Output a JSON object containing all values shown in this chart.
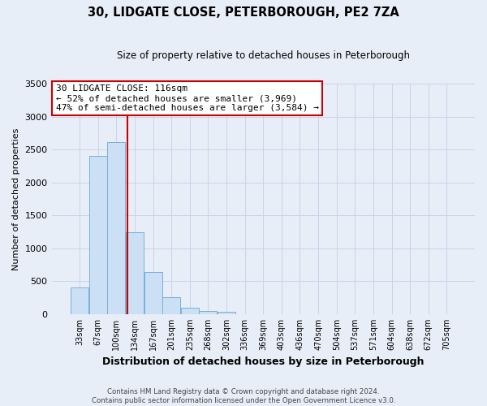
{
  "title": "30, LIDGATE CLOSE, PETERBOROUGH, PE2 7ZA",
  "subtitle": "Size of property relative to detached houses in Peterborough",
  "xlabel": "Distribution of detached houses by size in Peterborough",
  "ylabel": "Number of detached properties",
  "bar_labels": [
    "33sqm",
    "67sqm",
    "100sqm",
    "134sqm",
    "167sqm",
    "201sqm",
    "235sqm",
    "268sqm",
    "302sqm",
    "336sqm",
    "369sqm",
    "403sqm",
    "436sqm",
    "470sqm",
    "504sqm",
    "537sqm",
    "571sqm",
    "604sqm",
    "638sqm",
    "672sqm",
    "705sqm"
  ],
  "bar_heights": [
    400,
    2400,
    2610,
    1250,
    640,
    260,
    100,
    50,
    30,
    5,
    3,
    2,
    0,
    0,
    0,
    0,
    0,
    0,
    0,
    0,
    0
  ],
  "bar_color": "#cce0f5",
  "bar_edge_color": "#7bafd4",
  "bar_width": 0.97,
  "vline_x_index": 2.62,
  "vline_color": "#cc0000",
  "ylim": [
    0,
    3500
  ],
  "yticks": [
    0,
    500,
    1000,
    1500,
    2000,
    2500,
    3000,
    3500
  ],
  "annotation_title": "30 LIDGATE CLOSE: 116sqm",
  "annotation_line1": "← 52% of detached houses are smaller (3,969)",
  "annotation_line2": "47% of semi-detached houses are larger (3,584) →",
  "annotation_box_color": "#cc0000",
  "annotation_bg": "#ffffff",
  "footnote1": "Contains HM Land Registry data © Crown copyright and database right 2024.",
  "footnote2": "Contains public sector information licensed under the Open Government Licence v3.0.",
  "grid_color": "#c8d4e8",
  "bg_color": "#e8eef8",
  "plot_bg": "#e8eef8",
  "title_fontsize": 10.5,
  "subtitle_fontsize": 8.5,
  "ylabel_fontsize": 8,
  "xlabel_fontsize": 9,
  "tick_fontsize": 7,
  "ytick_fontsize": 8,
  "ann_fontsize": 8
}
